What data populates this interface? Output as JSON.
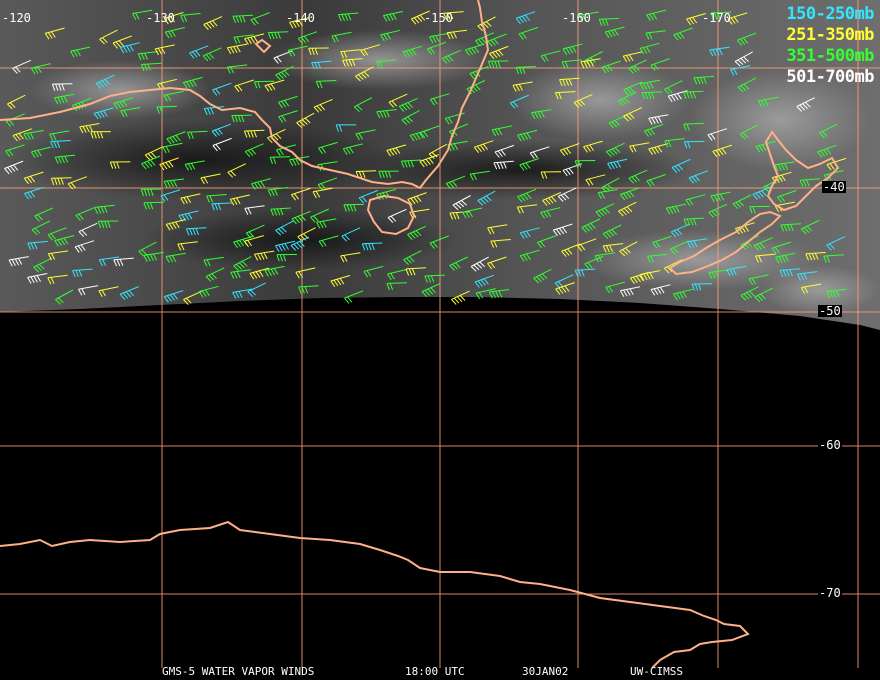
{
  "legend": [
    {
      "label": "150-250mb",
      "color": "#33e6ff"
    },
    {
      "label": "251-350mb",
      "color": "#ffff33"
    },
    {
      "label": "351-500mb",
      "color": "#33ff33"
    },
    {
      "label": "501-700mb",
      "color": "#ffffff"
    }
  ],
  "longitude_labels": [
    "-120",
    "-130",
    "-140",
    "-150",
    "-160",
    "-170"
  ],
  "latitude_labels": [
    "-40",
    "-50",
    "-60",
    "-70"
  ],
  "footer": {
    "product": "GMS-5 WATER VAPOR WINDS",
    "time": "18:00 UTC",
    "date": "30JAN02",
    "source": "UW-CIMSS"
  },
  "colors": {
    "coastline": "#ffb088",
    "gridline": "#ffa07a",
    "background": "#000000"
  }
}
